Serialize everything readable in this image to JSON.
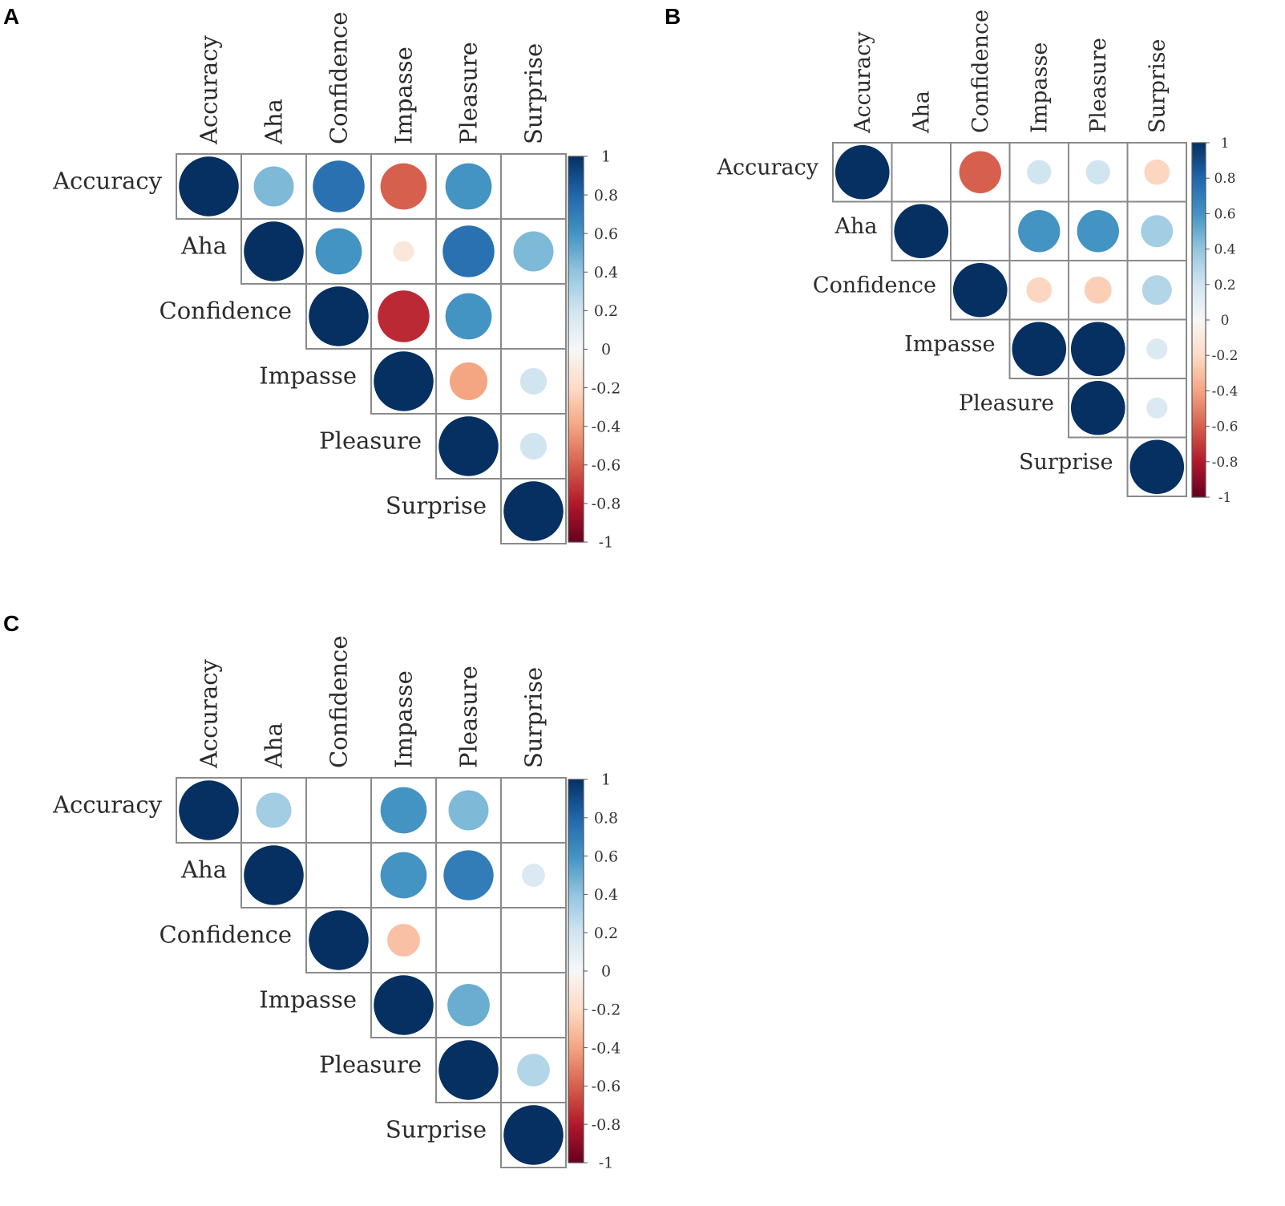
{
  "chart_data": [
    {
      "type": "heatmap",
      "panel": "A",
      "variables": [
        "Accuracy",
        "Aha",
        "Confidence",
        "Impasse",
        "Pleasure",
        "Surprise"
      ],
      "matrix_upper": [
        [
          1,
          0.45,
          0.75,
          -0.6,
          0.6,
          0
        ],
        [
          null,
          1,
          0.6,
          -0.12,
          0.75,
          0.45
        ],
        [
          null,
          null,
          1,
          -0.75,
          0.6,
          0
        ],
        [
          null,
          null,
          null,
          1,
          -0.4,
          0.2
        ],
        [
          null,
          null,
          null,
          null,
          1,
          0.2
        ],
        [
          null,
          null,
          null,
          null,
          null,
          1
        ]
      ],
      "colorbar_ticks": [
        "1",
        "0.8",
        "0.6",
        "0.4",
        "0.2",
        "0",
        "-0.2",
        "-0.4",
        "-0.6",
        "-0.8",
        "-1"
      ],
      "range": [
        -1,
        1
      ]
    },
    {
      "type": "heatmap",
      "panel": "B",
      "variables": [
        "Accuracy",
        "Aha",
        "Confidence",
        "Impasse",
        "Pleasure",
        "Surprise"
      ],
      "matrix_upper": [
        [
          1,
          0,
          -0.6,
          0.2,
          0.2,
          -0.22
        ],
        [
          null,
          1,
          0,
          0.6,
          0.6,
          0.35
        ],
        [
          null,
          null,
          1,
          -0.22,
          -0.25,
          0.3
        ],
        [
          null,
          null,
          null,
          1,
          1,
          0.15
        ],
        [
          null,
          null,
          null,
          null,
          1,
          0.15
        ],
        [
          null,
          null,
          null,
          null,
          null,
          1
        ]
      ],
      "colorbar_ticks": [
        "1",
        "0.8",
        "0.6",
        "0.4",
        "0.2",
        "0",
        "-0.2",
        "-0.4",
        "-0.6",
        "-0.8",
        "-1"
      ],
      "range": [
        -1,
        1
      ]
    },
    {
      "type": "heatmap",
      "panel": "C",
      "variables": [
        "Accuracy",
        "Aha",
        "Confidence",
        "Impasse",
        "Pleasure",
        "Surprise"
      ],
      "matrix_upper": [
        [
          1,
          0.35,
          0,
          0.6,
          0.45,
          0
        ],
        [
          null,
          1,
          0,
          0.6,
          0.7,
          0.15
        ],
        [
          null,
          null,
          1,
          -0.3,
          0,
          0
        ],
        [
          null,
          null,
          null,
          1,
          0.5,
          0
        ],
        [
          null,
          null,
          null,
          null,
          1,
          0.3
        ],
        [
          null,
          null,
          null,
          null,
          null,
          1
        ]
      ],
      "colorbar_ticks": [
        "1",
        "0.8",
        "0.6",
        "0.4",
        "0.2",
        "0",
        "-0.2",
        "-0.4",
        "-0.6",
        "-0.8",
        "-1"
      ],
      "range": [
        -1,
        1
      ]
    }
  ]
}
